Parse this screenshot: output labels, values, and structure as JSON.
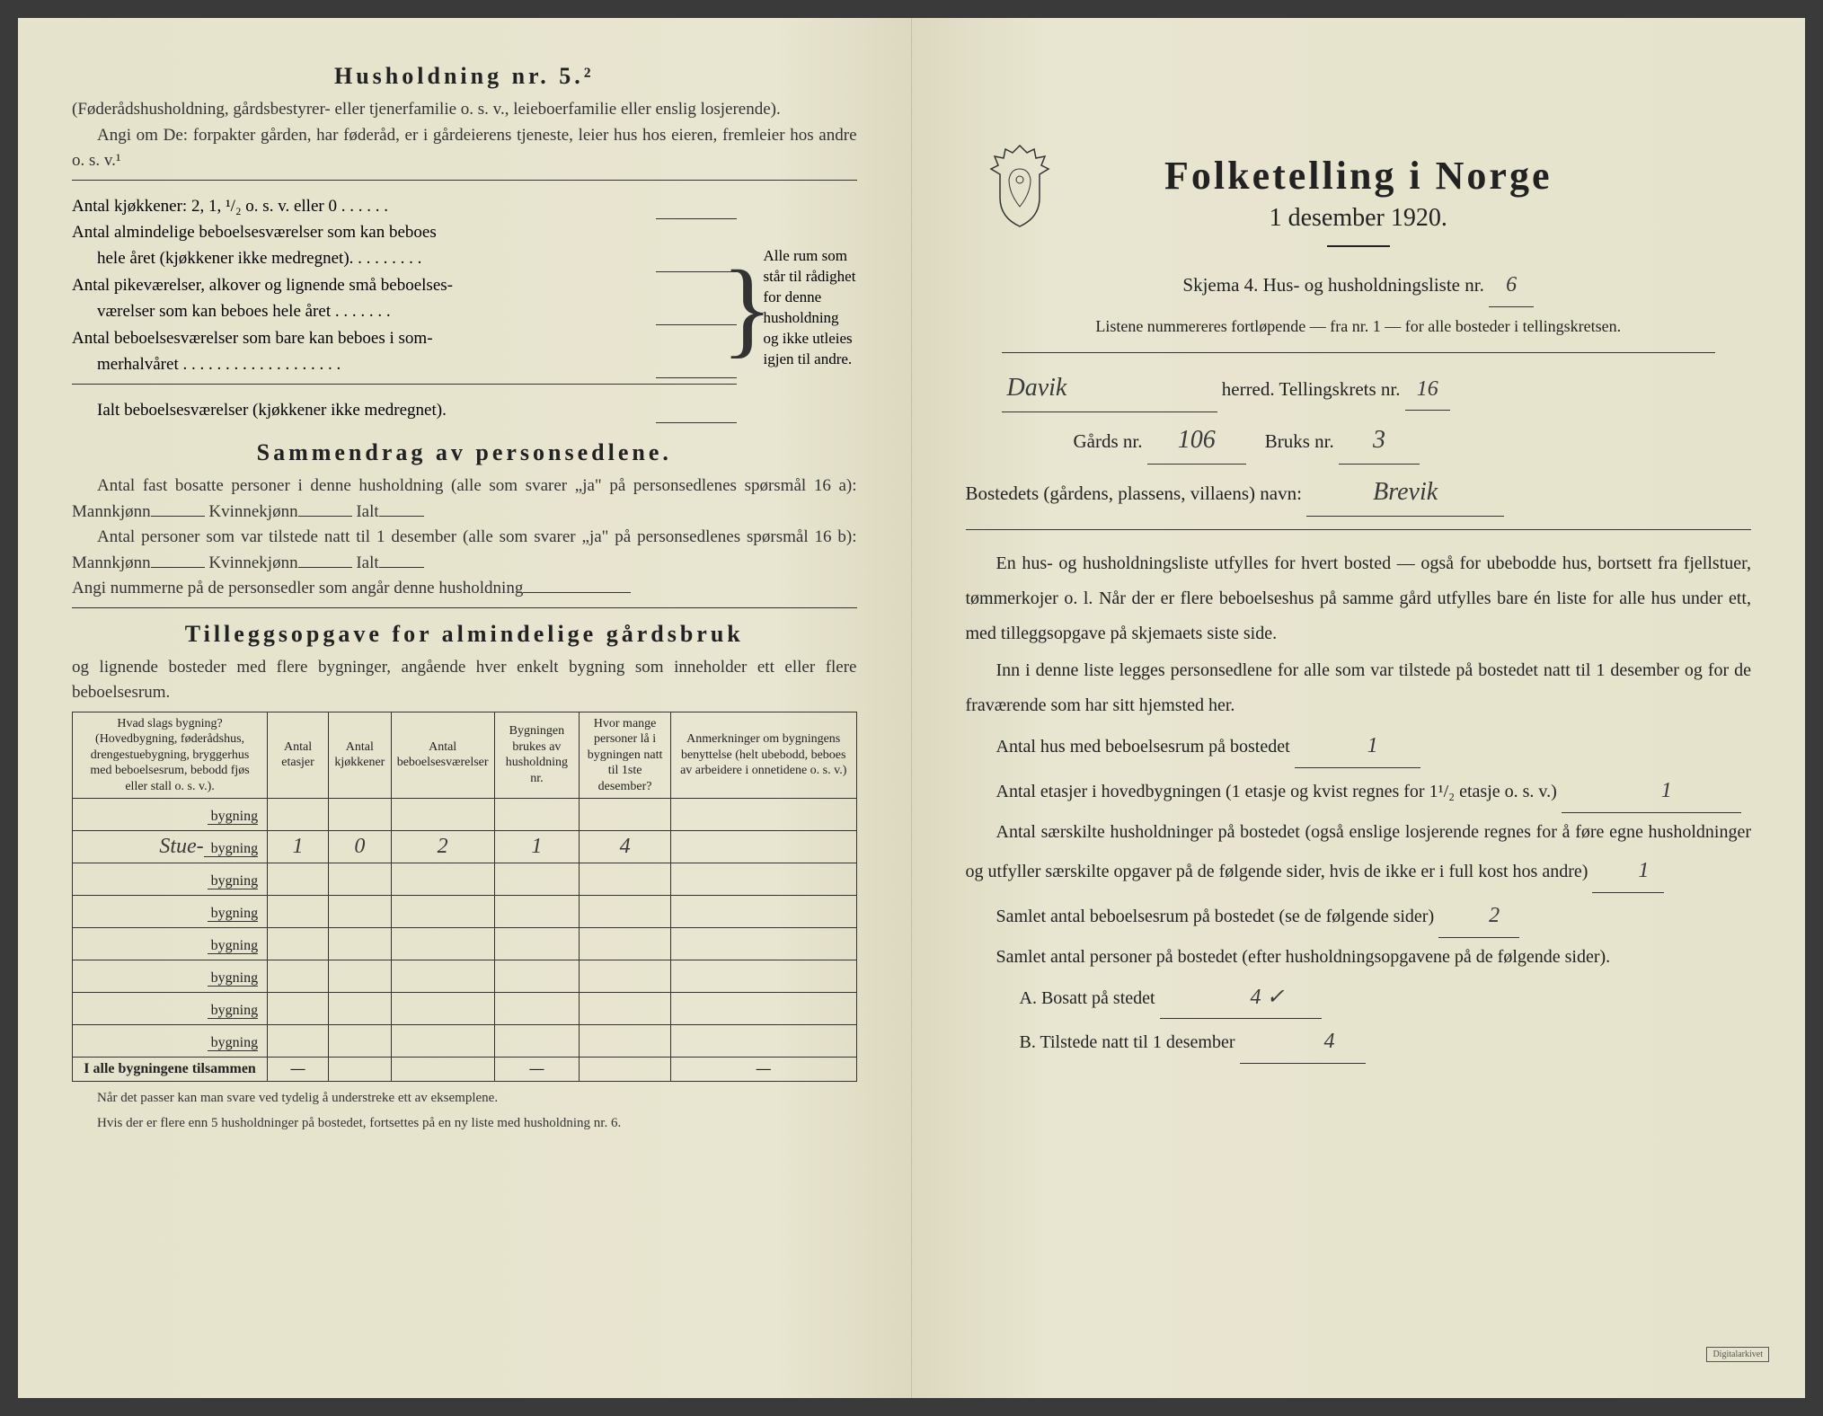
{
  "colors": {
    "paper": "#e8e5d0",
    "paper_edge": "#ddd9c0",
    "ink": "#222222",
    "handwriting": "#3a3a3a",
    "border": "#333333"
  },
  "typography": {
    "body_fontsize": 19,
    "title_fontsize": 26,
    "right_title_fontsize": 44,
    "handwritten_fontsize": 28
  },
  "left": {
    "title": "Husholdning nr. 5.²",
    "intro1": "(Føderådshusholdning, gårdsbestyrer- eller tjenerfamilie o. s. v., leieboerfamilie eller enslig losjerende).",
    "intro2": "Angi om De:  forpakter gården, har føderåd, er i gårdeierens tjeneste, leier hus hos eieren, fremleier hos andre o. s. v.¹",
    "rooms": {
      "r1": "Antal kjøkkener: 2, 1, ¹/₂ o. s. v. eller 0 . . . . . .",
      "r2a": "Antal almindelige beboelsesværelser som kan beboes",
      "r2b": "hele året (kjøkkener ikke medregnet). . . . . . . . .",
      "r3a": "Antal pikeværelser, alkover og lignende små beboelses-",
      "r3b": "værelser som kan beboes hele året . . . . . . .",
      "r4a": "Antal beboelsesværelser som bare kan beboes i som-",
      "r4b": "merhalvåret . . . . . . . . . . . . . . . . . . .",
      "total": "Ialt beboelsesværelser  (kjøkkener ikke medregnet).",
      "brace_note": "Alle rum som står til rådighet for denne husholdning og ikke utleies igjen til andre."
    },
    "sammendrag": {
      "title": "Sammendrag av personsedlene.",
      "p1": "Antal fast bosatte personer i denne husholdning (alle som svarer „ja\" på personsedlenes spørsmål 16 a): Mannkjønn",
      "kv": "Kvinnekjønn",
      "ialt": "Ialt",
      "p2": "Antal personer som var tilstede natt til 1 desember (alle som svarer „ja\" på personsedlenes spørsmål 16 b): Mannkjønn",
      "p3": "Angi nummerne på de personsedler som angår denne husholdning"
    },
    "tillegg": {
      "title": "Tilleggsopgave for almindelige gårdsbruk",
      "sub": "og lignende bosteder med flere bygninger, angående hver enkelt bygning som inneholder ett eller flere beboelsesrum."
    },
    "table": {
      "headers": {
        "c1": "Hvad slags bygning?\n(Hovedbygning, føderådshus, drengestuebygning, bryggerhus med beboelsesrum, bebodd fjøs eller stall o. s. v.).",
        "c2": "Antal etasjer",
        "c3": "Antal kjøkkener",
        "c4": "Antal beboelsesværelser",
        "c5": "Bygningen brukes av husholdning nr.",
        "c6": "Hvor mange personer lå i bygningen natt til 1ste desember?",
        "c7": "Anmerkninger om bygningens benyttelse (helt ubebodd, beboes av arbeidere i onnetidene o. s. v.)"
      },
      "row_label": "bygning",
      "rows": [
        {
          "name": "",
          "etasjer": "",
          "kjokken": "",
          "bebo": "",
          "hush": "",
          "pers": "",
          "anm": "",
          "struck": true
        },
        {
          "name": "Stue-",
          "etasjer": "1",
          "kjokken": "0",
          "bebo": "2",
          "hush": "1",
          "pers": "4",
          "anm": ""
        },
        {
          "name": "",
          "etasjer": "",
          "kjokken": "",
          "bebo": "",
          "hush": "",
          "pers": "",
          "anm": ""
        },
        {
          "name": "",
          "etasjer": "",
          "kjokken": "",
          "bebo": "",
          "hush": "",
          "pers": "",
          "anm": ""
        },
        {
          "name": "",
          "etasjer": "",
          "kjokken": "",
          "bebo": "",
          "hush": "",
          "pers": "",
          "anm": ""
        },
        {
          "name": "",
          "etasjer": "",
          "kjokken": "",
          "bebo": "",
          "hush": "",
          "pers": "",
          "anm": ""
        },
        {
          "name": "",
          "etasjer": "",
          "kjokken": "",
          "bebo": "",
          "hush": "",
          "pers": "",
          "anm": ""
        },
        {
          "name": "",
          "etasjer": "",
          "kjokken": "",
          "bebo": "",
          "hush": "",
          "pers": "",
          "anm": ""
        }
      ],
      "footer": "I alle bygningene tilsammen",
      "dash": "—"
    },
    "footnotes": {
      "f1": "Når det passer kan man svare ved tydelig å understreke ett av eksemplene.",
      "f2": "Hvis der er flere enn 5 husholdninger på bostedet, fortsettes på en ny liste med husholdning nr. 6."
    }
  },
  "right": {
    "title": "Folketelling  i  Norge",
    "subtitle": "1 desember 1920.",
    "skjema": "Skjema 4.   Hus- og husholdningsliste nr.",
    "skjema_val": "6",
    "listene": "Listene nummereres fortløpende — fra nr. 1 — for alle bosteder i tellingskretsen.",
    "herred_val": "Davik",
    "herred_lbl": "herred.   Tellingskrets nr.",
    "krets_val": "16",
    "gards_lbl": "Gårds nr.",
    "gards_val": "106",
    "bruks_lbl": "Bruks nr.",
    "bruks_val": "3",
    "bosted_lbl": "Bostedets (gårdens, plassens, villaens) navn:",
    "bosted_val": "Brevik",
    "body": {
      "p1": "En hus- og husholdningsliste utfylles for hvert bosted — også for ubebodde hus, bortsett fra fjellstuer, tømmerkojer o. l.  Når der er flere beboelseshus på samme gård utfylles bare én liste for alle hus under ett, med tilleggsopgave på skjemaets siste side.",
      "p2": "Inn i denne liste legges personsedlene for alle som var tilstede på bostedet natt til 1 desember og for de fraværende som har sitt hjemsted her.",
      "p3_lbl": "Antal hus med beboelsesrum på bostedet",
      "p3_val": "1",
      "p4a": "Antal etasjer i hovedbygningen (1 etasje og kvist regnes for 1¹/₂ etasje o. s. v.)",
      "p4_val": "1",
      "p5": "Antal særskilte husholdninger på bostedet (også enslige losjerende regnes for å føre egne husholdninger og utfyller særskilte opgaver på de følgende sider, hvis de ikke er i full kost hos andre)",
      "p5_val": "1",
      "p6_lbl": "Samlet antal beboelsesrum på bostedet (se de følgende sider)",
      "p6_val": "2",
      "p7": "Samlet antal personer på bostedet (efter husholdningsopgavene på de følgende sider).",
      "pA_lbl": "A.  Bosatt på stedet",
      "pA_val": "4 ✓",
      "pB_lbl": "B.  Tilstede natt til 1 desember",
      "pB_val": "4"
    },
    "stamp": "Digitalarkivet"
  }
}
